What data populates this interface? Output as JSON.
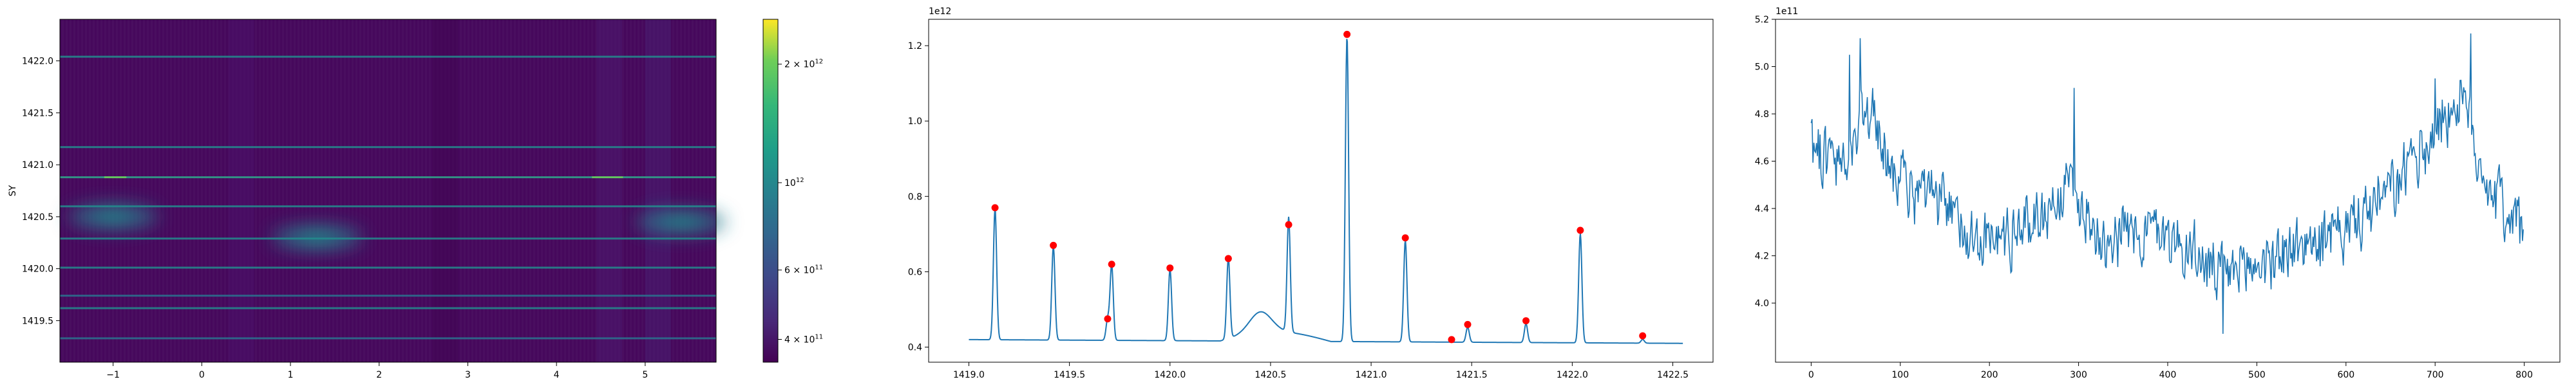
{
  "figure": {
    "background": "#ffffff",
    "line_color": "#1f77b4",
    "peak_color": "#ff0000"
  },
  "chart_data": [
    {
      "type": "heatmap",
      "ylabel": "SY",
      "xlim": [
        -1.6,
        5.8
      ],
      "ylim": [
        1419.1,
        1422.4
      ],
      "xticks": [
        -1,
        0,
        1,
        2,
        3,
        4,
        5
      ],
      "xtick_labels": [
        "−1",
        "0",
        "1",
        "2",
        "3",
        "4",
        "5"
      ],
      "yticks": [
        1419.5,
        1420.0,
        1420.5,
        1421.0,
        1421.5,
        1422.0
      ],
      "ytick_labels": [
        "1419.5",
        "1420.0",
        "1420.5",
        "1421.0",
        "1421.5",
        "1422.0"
      ],
      "colormap": "viridis",
      "colorbar": {
        "scale": "log",
        "ticks": [
          400000000000.0,
          600000000000.0,
          1000000000000.0,
          2000000000000.0
        ],
        "tick_labels": [
          {
            "base": "4 × 10",
            "exp": "11"
          },
          {
            "base": "6 × 10",
            "exp": "11"
          },
          {
            "base": "10",
            "exp": "12"
          },
          {
            "base": "2 × 10",
            "exp": "12"
          }
        ],
        "range": [
          350000000000.0,
          2600000000000.0
        ]
      },
      "bright_rows": [
        {
          "y": 1419.33,
          "level": 0.35
        },
        {
          "y": 1419.62,
          "level": 0.4
        },
        {
          "y": 1419.74,
          "level": 0.2
        },
        {
          "y": 1420.01,
          "level": 0.4
        },
        {
          "y": 1420.29,
          "level": 0.45
        },
        {
          "y": 1420.6,
          "level": 0.4
        },
        {
          "y": 1420.88,
          "level": 0.6
        },
        {
          "y": 1421.17,
          "level": 0.4
        },
        {
          "y": 1422.04,
          "level": 0.45
        }
      ],
      "blobs": [
        {
          "x": -1.0,
          "y": 1420.5,
          "level": 0.45
        },
        {
          "x": 1.3,
          "y": 1420.3,
          "level": 0.35
        },
        {
          "x": 5.4,
          "y": 1420.45,
          "level": 0.45
        }
      ]
    },
    {
      "type": "line",
      "offset_text": "1e12",
      "xlim": [
        1418.8,
        1422.7
      ],
      "ylim": [
        0.36,
        1.27
      ],
      "xticks": [
        1419.0,
        1419.5,
        1420.0,
        1420.5,
        1421.0,
        1421.5,
        1422.0,
        1422.5
      ],
      "xtick_labels": [
        "1419.0",
        "1419.5",
        "1420.0",
        "1420.5",
        "1421.0",
        "1421.5",
        "1422.0",
        "1422.5"
      ],
      "yticks": [
        0.4,
        0.6,
        0.8,
        1.0,
        1.2
      ],
      "ytick_labels": [
        "0.4",
        "0.6",
        "0.8",
        "1.0",
        "1.2"
      ],
      "baseline": 0.42,
      "peaks": [
        {
          "x": 1419.13,
          "y": 0.77
        },
        {
          "x": 1419.42,
          "y": 0.67
        },
        {
          "x": 1419.69,
          "y": 0.475
        },
        {
          "x": 1419.71,
          "y": 0.62
        },
        {
          "x": 1420.0,
          "y": 0.61
        },
        {
          "x": 1420.29,
          "y": 0.635
        },
        {
          "x": 1420.59,
          "y": 0.725
        },
        {
          "x": 1420.88,
          "y": 1.23
        },
        {
          "x": 1421.17,
          "y": 0.69
        },
        {
          "x": 1421.48,
          "y": 0.46
        },
        {
          "x": 1421.77,
          "y": 0.47
        },
        {
          "x": 1422.04,
          "y": 0.71
        },
        {
          "x": 1422.35,
          "y": 0.43
        }
      ],
      "extra_markers": [
        {
          "x": 1421.4,
          "y": 0.42
        }
      ],
      "bump": {
        "x_start": 1420.25,
        "x_end": 1420.8,
        "peak_x": 1420.45,
        "peak_y": 0.475
      }
    },
    {
      "type": "line",
      "offset_text": "1e11",
      "xlim": [
        -40,
        840
      ],
      "ylim": [
        3.75,
        5.2
      ],
      "xticks": [
        0,
        100,
        200,
        300,
        400,
        500,
        600,
        700,
        800
      ],
      "xtick_labels": [
        "0",
        "100",
        "200",
        "300",
        "400",
        "500",
        "600",
        "700",
        "800"
      ],
      "yticks": [
        4.0,
        4.2,
        4.4,
        4.6,
        4.8,
        5.0,
        5.2
      ],
      "ytick_labels": [
        "4.0",
        "4.2",
        "4.4",
        "4.6",
        "4.8",
        "5.0",
        "5.2"
      ],
      "n_points": 800,
      "trend_anchors": [
        {
          "x": 0,
          "y": 4.7
        },
        {
          "x": 40,
          "y": 4.55
        },
        {
          "x": 60,
          "y": 4.85
        },
        {
          "x": 100,
          "y": 4.5
        },
        {
          "x": 150,
          "y": 4.4
        },
        {
          "x": 200,
          "y": 4.25
        },
        {
          "x": 250,
          "y": 4.35
        },
        {
          "x": 290,
          "y": 4.5
        },
        {
          "x": 320,
          "y": 4.3
        },
        {
          "x": 400,
          "y": 4.3
        },
        {
          "x": 460,
          "y": 4.1
        },
        {
          "x": 520,
          "y": 4.2
        },
        {
          "x": 600,
          "y": 4.3
        },
        {
          "x": 660,
          "y": 4.5
        },
        {
          "x": 700,
          "y": 4.75
        },
        {
          "x": 730,
          "y": 4.85
        },
        {
          "x": 760,
          "y": 4.5
        },
        {
          "x": 800,
          "y": 4.3
        }
      ],
      "spikes": [
        {
          "x": 55,
          "y": 5.12
        },
        {
          "x": 43,
          "y": 5.05
        },
        {
          "x": 295,
          "y": 4.91
        },
        {
          "x": 462,
          "y": 3.87
        },
        {
          "x": 740,
          "y": 5.14
        },
        {
          "x": 700,
          "y": 4.95
        }
      ]
    }
  ]
}
